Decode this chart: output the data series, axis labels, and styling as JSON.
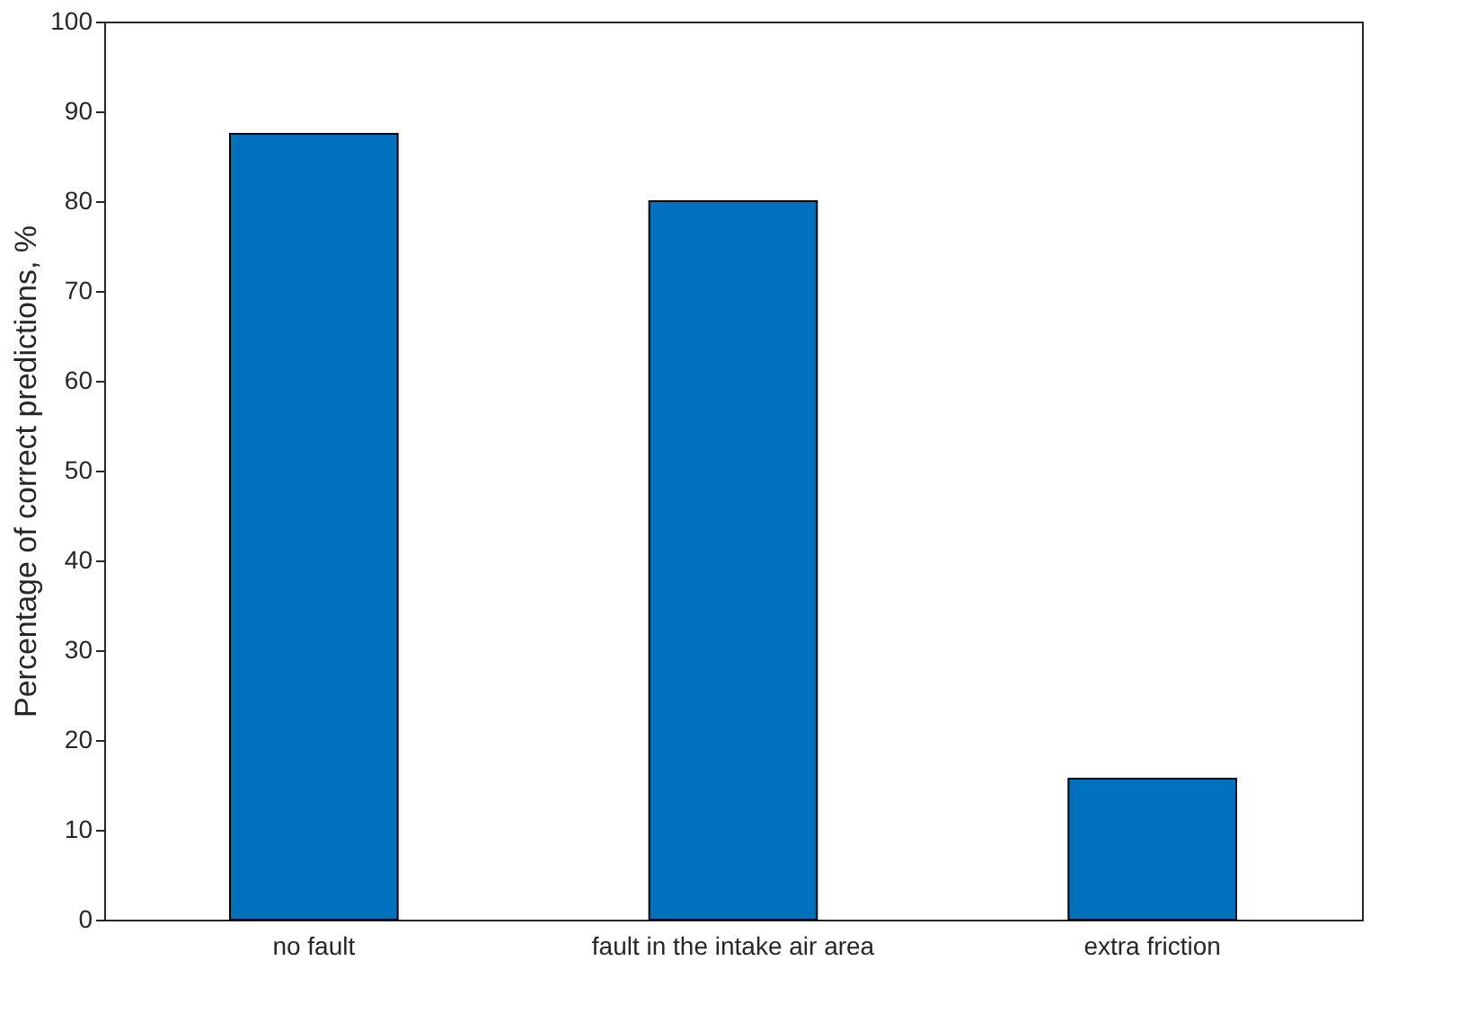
{
  "chart_data": {
    "type": "bar",
    "ylabel": "Percentage of correct predictions, %",
    "categories": [
      "no fault",
      "fault in the intake air area",
      "extra friction"
    ],
    "values": [
      87.5,
      80,
      15.7
    ],
    "color": "#0072bd",
    "ylim": [
      0,
      100
    ],
    "yticks": [
      0,
      10,
      20,
      30,
      40,
      50,
      60,
      70,
      80,
      90,
      100
    ],
    "grid": false
  }
}
